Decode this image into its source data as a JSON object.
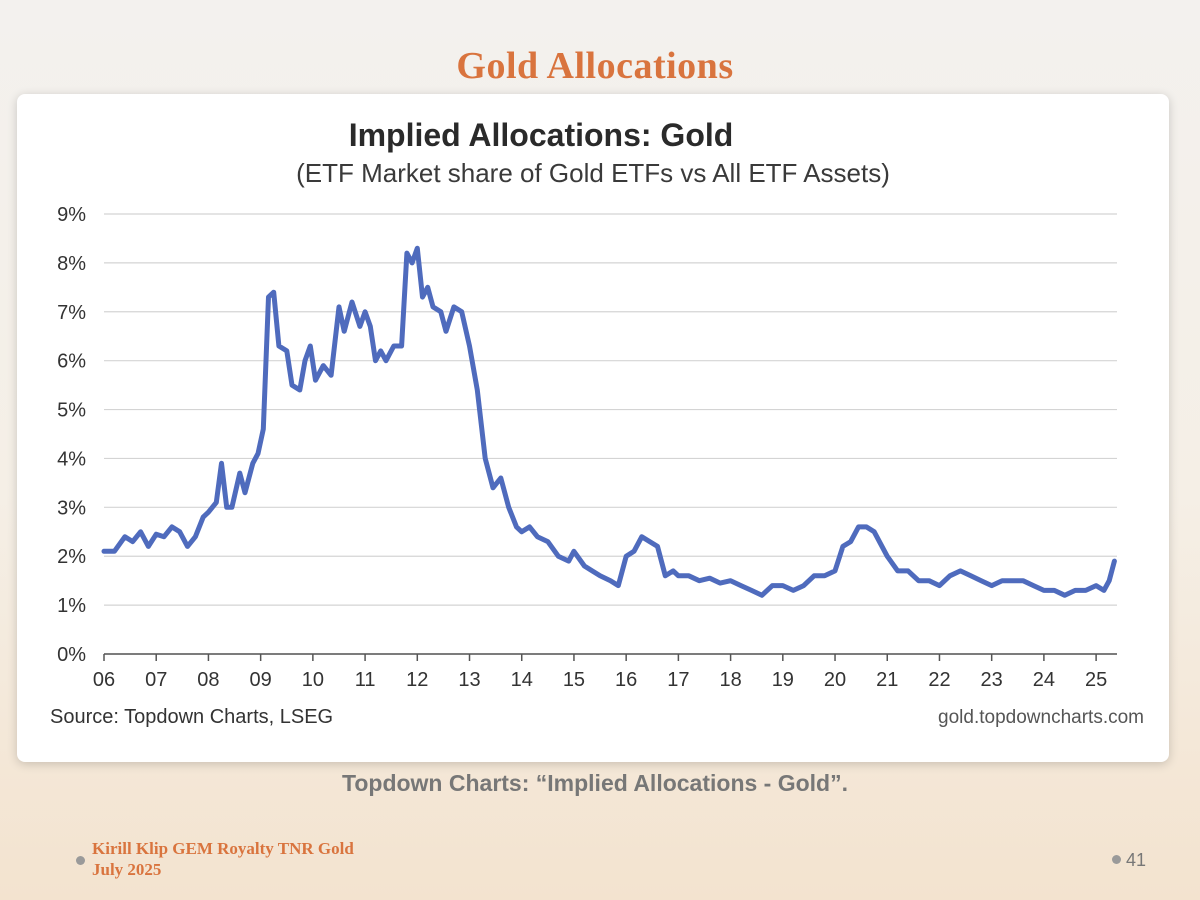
{
  "slide": {
    "title": "Gold Allocations",
    "caption": "Topdown Charts: “Implied Allocations - Gold”.",
    "footer_line1": "Kirill Klip GEM Royalty TNR Gold",
    "footer_line2": "July 2025",
    "page_number": "41"
  },
  "chart_data": {
    "type": "line",
    "title": "Implied Allocations: Gold",
    "subtitle": "(ETF Market share of Gold ETFs vs All ETF Assets)",
    "source": "Source: Topdown Charts, LSEG",
    "watermark": "gold.topdowncharts.com",
    "xlabel": "",
    "ylabel": "",
    "x_ticks": [
      "06",
      "07",
      "08",
      "09",
      "10",
      "11",
      "12",
      "13",
      "14",
      "15",
      "16",
      "17",
      "18",
      "19",
      "20",
      "21",
      "22",
      "23",
      "24",
      "25"
    ],
    "y_ticks": [
      "0%",
      "1%",
      "2%",
      "3%",
      "4%",
      "5%",
      "6%",
      "7%",
      "8%",
      "9%"
    ],
    "xlim": [
      2006.0,
      2025.4
    ],
    "ylim": [
      0,
      9
    ],
    "grid": true,
    "line_color": "#4f6bbd",
    "series": [
      {
        "x": [
          2006.0,
          2006.2,
          2006.4,
          2006.55,
          2006.7,
          2006.85,
          2007.0,
          2007.15,
          2007.3,
          2007.45,
          2007.6,
          2007.75,
          2007.9,
          2008.0,
          2008.15,
          2008.25,
          2008.35,
          2008.45,
          2008.6,
          2008.7,
          2008.85,
          2008.95,
          2009.05,
          2009.15,
          2009.25,
          2009.35,
          2009.5,
          2009.6,
          2009.75,
          2009.85,
          2009.95,
          2010.05,
          2010.2,
          2010.35,
          2010.5,
          2010.6,
          2010.75,
          2010.9,
          2011.0,
          2011.1,
          2011.2,
          2011.3,
          2011.4,
          2011.55,
          2011.7,
          2011.8,
          2011.9,
          2012.0,
          2012.1,
          2012.2,
          2012.3,
          2012.45,
          2012.55,
          2012.7,
          2012.85,
          2013.0,
          2013.15,
          2013.3,
          2013.45,
          2013.6,
          2013.75,
          2013.9,
          2014.0,
          2014.15,
          2014.3,
          2014.5,
          2014.7,
          2014.9,
          2015.0,
          2015.2,
          2015.35,
          2015.5,
          2015.7,
          2015.85,
          2016.0,
          2016.15,
          2016.3,
          2016.45,
          2016.6,
          2016.75,
          2016.9,
          2017.0,
          2017.2,
          2017.4,
          2017.6,
          2017.8,
          2018.0,
          2018.2,
          2018.4,
          2018.6,
          2018.8,
          2019.0,
          2019.2,
          2019.4,
          2019.6,
          2019.8,
          2020.0,
          2020.15,
          2020.3,
          2020.45,
          2020.6,
          2020.75,
          2020.9,
          2021.0,
          2021.2,
          2021.4,
          2021.6,
          2021.8,
          2022.0,
          2022.2,
          2022.4,
          2022.6,
          2022.8,
          2023.0,
          2023.2,
          2023.4,
          2023.6,
          2023.8,
          2024.0,
          2024.2,
          2024.4,
          2024.6,
          2024.8,
          2025.0,
          2025.15,
          2025.25,
          2025.35
        ],
        "values": [
          2.1,
          2.1,
          2.4,
          2.3,
          2.5,
          2.2,
          2.45,
          2.4,
          2.6,
          2.5,
          2.2,
          2.4,
          2.8,
          2.9,
          3.1,
          3.9,
          3.0,
          3.0,
          3.7,
          3.3,
          3.9,
          4.1,
          4.6,
          7.3,
          7.4,
          6.3,
          6.2,
          5.5,
          5.4,
          6.0,
          6.3,
          5.6,
          5.9,
          5.7,
          7.1,
          6.6,
          7.2,
          6.7,
          7.0,
          6.7,
          6.0,
          6.2,
          6.0,
          6.3,
          6.3,
          8.2,
          8.0,
          8.3,
          7.3,
          7.5,
          7.1,
          7.0,
          6.6,
          7.1,
          7.0,
          6.3,
          5.4,
          4.0,
          3.4,
          3.6,
          3.0,
          2.6,
          2.5,
          2.6,
          2.4,
          2.3,
          2.0,
          1.9,
          2.1,
          1.8,
          1.7,
          1.6,
          1.5,
          1.4,
          2.0,
          2.1,
          2.4,
          2.3,
          2.2,
          1.6,
          1.7,
          1.6,
          1.6,
          1.5,
          1.55,
          1.45,
          1.5,
          1.4,
          1.3,
          1.2,
          1.4,
          1.4,
          1.3,
          1.4,
          1.6,
          1.6,
          1.7,
          2.2,
          2.3,
          2.6,
          2.6,
          2.5,
          2.2,
          2.0,
          1.7,
          1.7,
          1.5,
          1.5,
          1.4,
          1.6,
          1.7,
          1.6,
          1.5,
          1.4,
          1.5,
          1.5,
          1.5,
          1.4,
          1.3,
          1.3,
          1.2,
          1.3,
          1.3,
          1.4,
          1.3,
          1.5,
          1.9
        ]
      }
    ]
  }
}
